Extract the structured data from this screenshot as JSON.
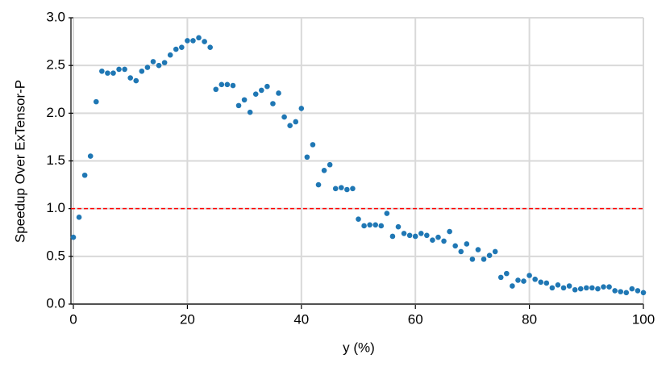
{
  "chart_data": {
    "type": "scatter",
    "xlabel": "y (%)",
    "ylabel": "Speedup Over ExTensor-P",
    "x": [
      0,
      1,
      2,
      3,
      4,
      5,
      6,
      7,
      8,
      9,
      10,
      11,
      12,
      13,
      14,
      15,
      16,
      17,
      18,
      19,
      20,
      21,
      22,
      23,
      24,
      25,
      26,
      27,
      28,
      29,
      30,
      31,
      32,
      33,
      34,
      35,
      36,
      37,
      38,
      39,
      40,
      41,
      42,
      43,
      44,
      45,
      46,
      47,
      48,
      49,
      50,
      51,
      52,
      53,
      54,
      55,
      56,
      57,
      58,
      59,
      60,
      61,
      62,
      63,
      64,
      65,
      66,
      67,
      68,
      69,
      70,
      71,
      72,
      73,
      74,
      75,
      76,
      77,
      78,
      79,
      80,
      81,
      82,
      83,
      84,
      85,
      86,
      87,
      88,
      89,
      90,
      91,
      92,
      93,
      94,
      95,
      96,
      97,
      98,
      99,
      100
    ],
    "values": [
      0.7,
      0.91,
      1.35,
      1.55,
      2.12,
      2.44,
      2.42,
      2.42,
      2.46,
      2.46,
      2.37,
      2.34,
      2.44,
      2.48,
      2.54,
      2.5,
      2.53,
      2.61,
      2.67,
      2.69,
      2.76,
      2.76,
      2.79,
      2.75,
      2.69,
      2.25,
      2.3,
      2.3,
      2.29,
      2.08,
      2.14,
      2.01,
      2.2,
      2.24,
      2.28,
      2.1,
      2.21,
      1.96,
      1.87,
      1.91,
      2.05,
      1.54,
      1.67,
      1.25,
      1.4,
      1.46,
      1.21,
      1.22,
      1.2,
      1.21,
      0.89,
      0.82,
      0.83,
      0.83,
      0.82,
      0.95,
      0.71,
      0.81,
      0.74,
      0.72,
      0.71,
      0.74,
      0.72,
      0.67,
      0.7,
      0.66,
      0.76,
      0.61,
      0.55,
      0.63,
      0.47,
      0.57,
      0.47,
      0.51,
      0.55,
      0.28,
      0.32,
      0.19,
      0.25,
      0.24,
      0.3,
      0.26,
      0.23,
      0.22,
      0.17,
      0.2,
      0.17,
      0.19,
      0.15,
      0.16,
      0.17,
      0.17,
      0.16,
      0.18,
      0.18,
      0.14,
      0.13,
      0.12,
      0.16,
      0.14,
      0.12
    ],
    "color": "#1f77b4",
    "xlim": [
      0,
      100
    ],
    "xticks": [
      0,
      20,
      40,
      60,
      80,
      100
    ],
    "ylim": [
      0,
      3
    ],
    "yticks": [
      {
        "value": 0,
        "label": "0.0"
      },
      {
        "value": 0.5,
        "label": "0.5"
      },
      {
        "value": 1,
        "label": "1.0"
      },
      {
        "value": 1.5,
        "label": "1.5"
      },
      {
        "value": 2,
        "label": "2.0"
      },
      {
        "value": 2.5,
        "label": "2.5"
      },
      {
        "value": 3,
        "label": "3.0"
      }
    ],
    "grid": true,
    "hline": 1,
    "hline_color": "#ff0000"
  }
}
